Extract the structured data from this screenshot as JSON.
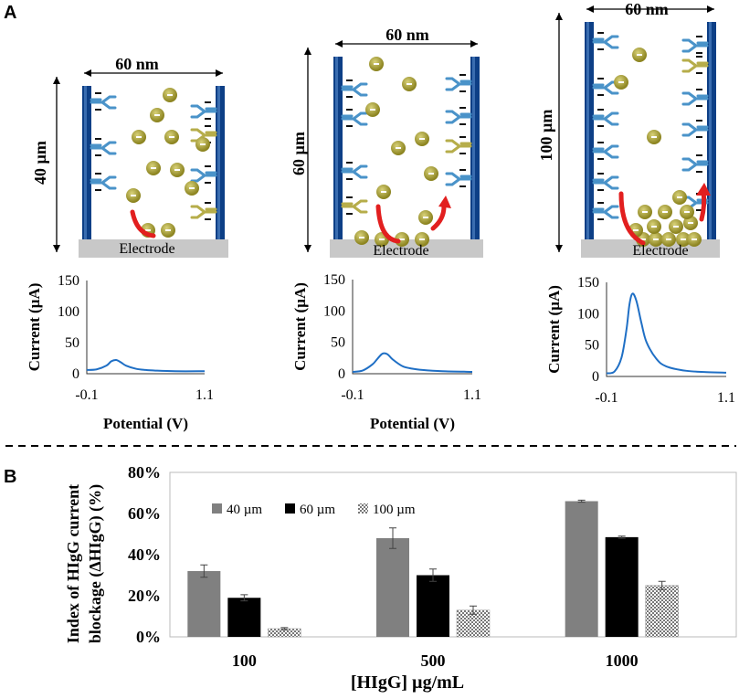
{
  "panel_a_label": "A",
  "panel_b_label": "B",
  "electrode_label": "Electrode",
  "width_label": "60 nm",
  "heights": [
    "40 µm",
    "60 µm",
    "100 µm"
  ],
  "colors": {
    "blue": "#1f6fc5",
    "dark_blue": "#0d3f86",
    "gray_bar": "#808080",
    "black_bar": "#000000",
    "electrode": "#c8c8c8",
    "red_arrow": "#e21f1f",
    "olive": "#a39a2a",
    "antibody_blue": "#4a93c9",
    "antigen_olive": "#b6ad4a"
  },
  "icons": [
    "antibody-icon",
    "antigen-icon",
    "arrow-icon"
  ],
  "chart_data": [
    {
      "type": "line",
      "xlabel": "Potential (V)",
      "ylabel": "Current (µA)",
      "xlim": [
        -0.1,
        1.1
      ],
      "ylim": [
        0,
        150
      ],
      "yticks": [
        "0",
        "50",
        "100",
        "150"
      ],
      "xticks": [
        "-0.1",
        "1.1"
      ],
      "x": [
        -0.1,
        0.0,
        0.1,
        0.15,
        0.2,
        0.25,
        0.3,
        0.4,
        0.5,
        0.6,
        0.8,
        1.1
      ],
      "y": [
        6,
        7,
        13,
        20,
        22,
        18,
        13,
        8,
        6,
        5,
        4,
        4
      ]
    },
    {
      "type": "line",
      "xlabel": "Potential (V)",
      "ylabel": "Current (µA)",
      "xlim": [
        -0.1,
        1.1
      ],
      "ylim": [
        0,
        150
      ],
      "yticks": [
        "0",
        "50",
        "100",
        "150"
      ],
      "xticks": [
        "-0.1",
        "1.1"
      ],
      "x": [
        -0.1,
        0.0,
        0.1,
        0.15,
        0.2,
        0.25,
        0.3,
        0.4,
        0.5,
        0.6,
        0.8,
        1.1
      ],
      "y": [
        3,
        5,
        15,
        24,
        32,
        31,
        23,
        12,
        8,
        6,
        4,
        3
      ]
    },
    {
      "type": "line",
      "xlabel": "",
      "ylabel": "Current (µA)",
      "xlim": [
        -0.1,
        1.1
      ],
      "ylim": [
        0,
        150
      ],
      "yticks": [
        "0",
        "50",
        "100",
        "150"
      ],
      "xticks": [
        "-0.1",
        "1.1"
      ],
      "x": [
        -0.1,
        -0.02,
        0.05,
        0.1,
        0.13,
        0.16,
        0.2,
        0.25,
        0.3,
        0.4,
        0.5,
        0.7,
        0.9,
        1.1
      ],
      "y": [
        5,
        8,
        30,
        75,
        115,
        132,
        120,
        85,
        55,
        28,
        16,
        9,
        7,
        6
      ]
    },
    {
      "type": "bar",
      "title": "",
      "xlabel": "[HIgG] µg/mL",
      "ylabel": "Index of HIgG current blockage (ΔHIgG) (%)",
      "ylim": [
        0,
        80
      ],
      "yticks": [
        "0%",
        "20%",
        "40%",
        "60%",
        "80%"
      ],
      "categories": [
        "100",
        "500",
        "1000"
      ],
      "series": [
        {
          "name": "40 µm",
          "values": [
            32,
            48,
            66
          ],
          "errors": [
            3,
            5,
            0.5
          ]
        },
        {
          "name": "60 µm",
          "values": [
            19,
            30,
            48.5
          ],
          "errors": [
            1.5,
            3,
            0.5
          ]
        },
        {
          "name": "100 µm",
          "values": [
            4,
            13,
            25
          ],
          "errors": [
            0.5,
            2,
            2
          ]
        }
      ],
      "legend": "top-left"
    }
  ]
}
